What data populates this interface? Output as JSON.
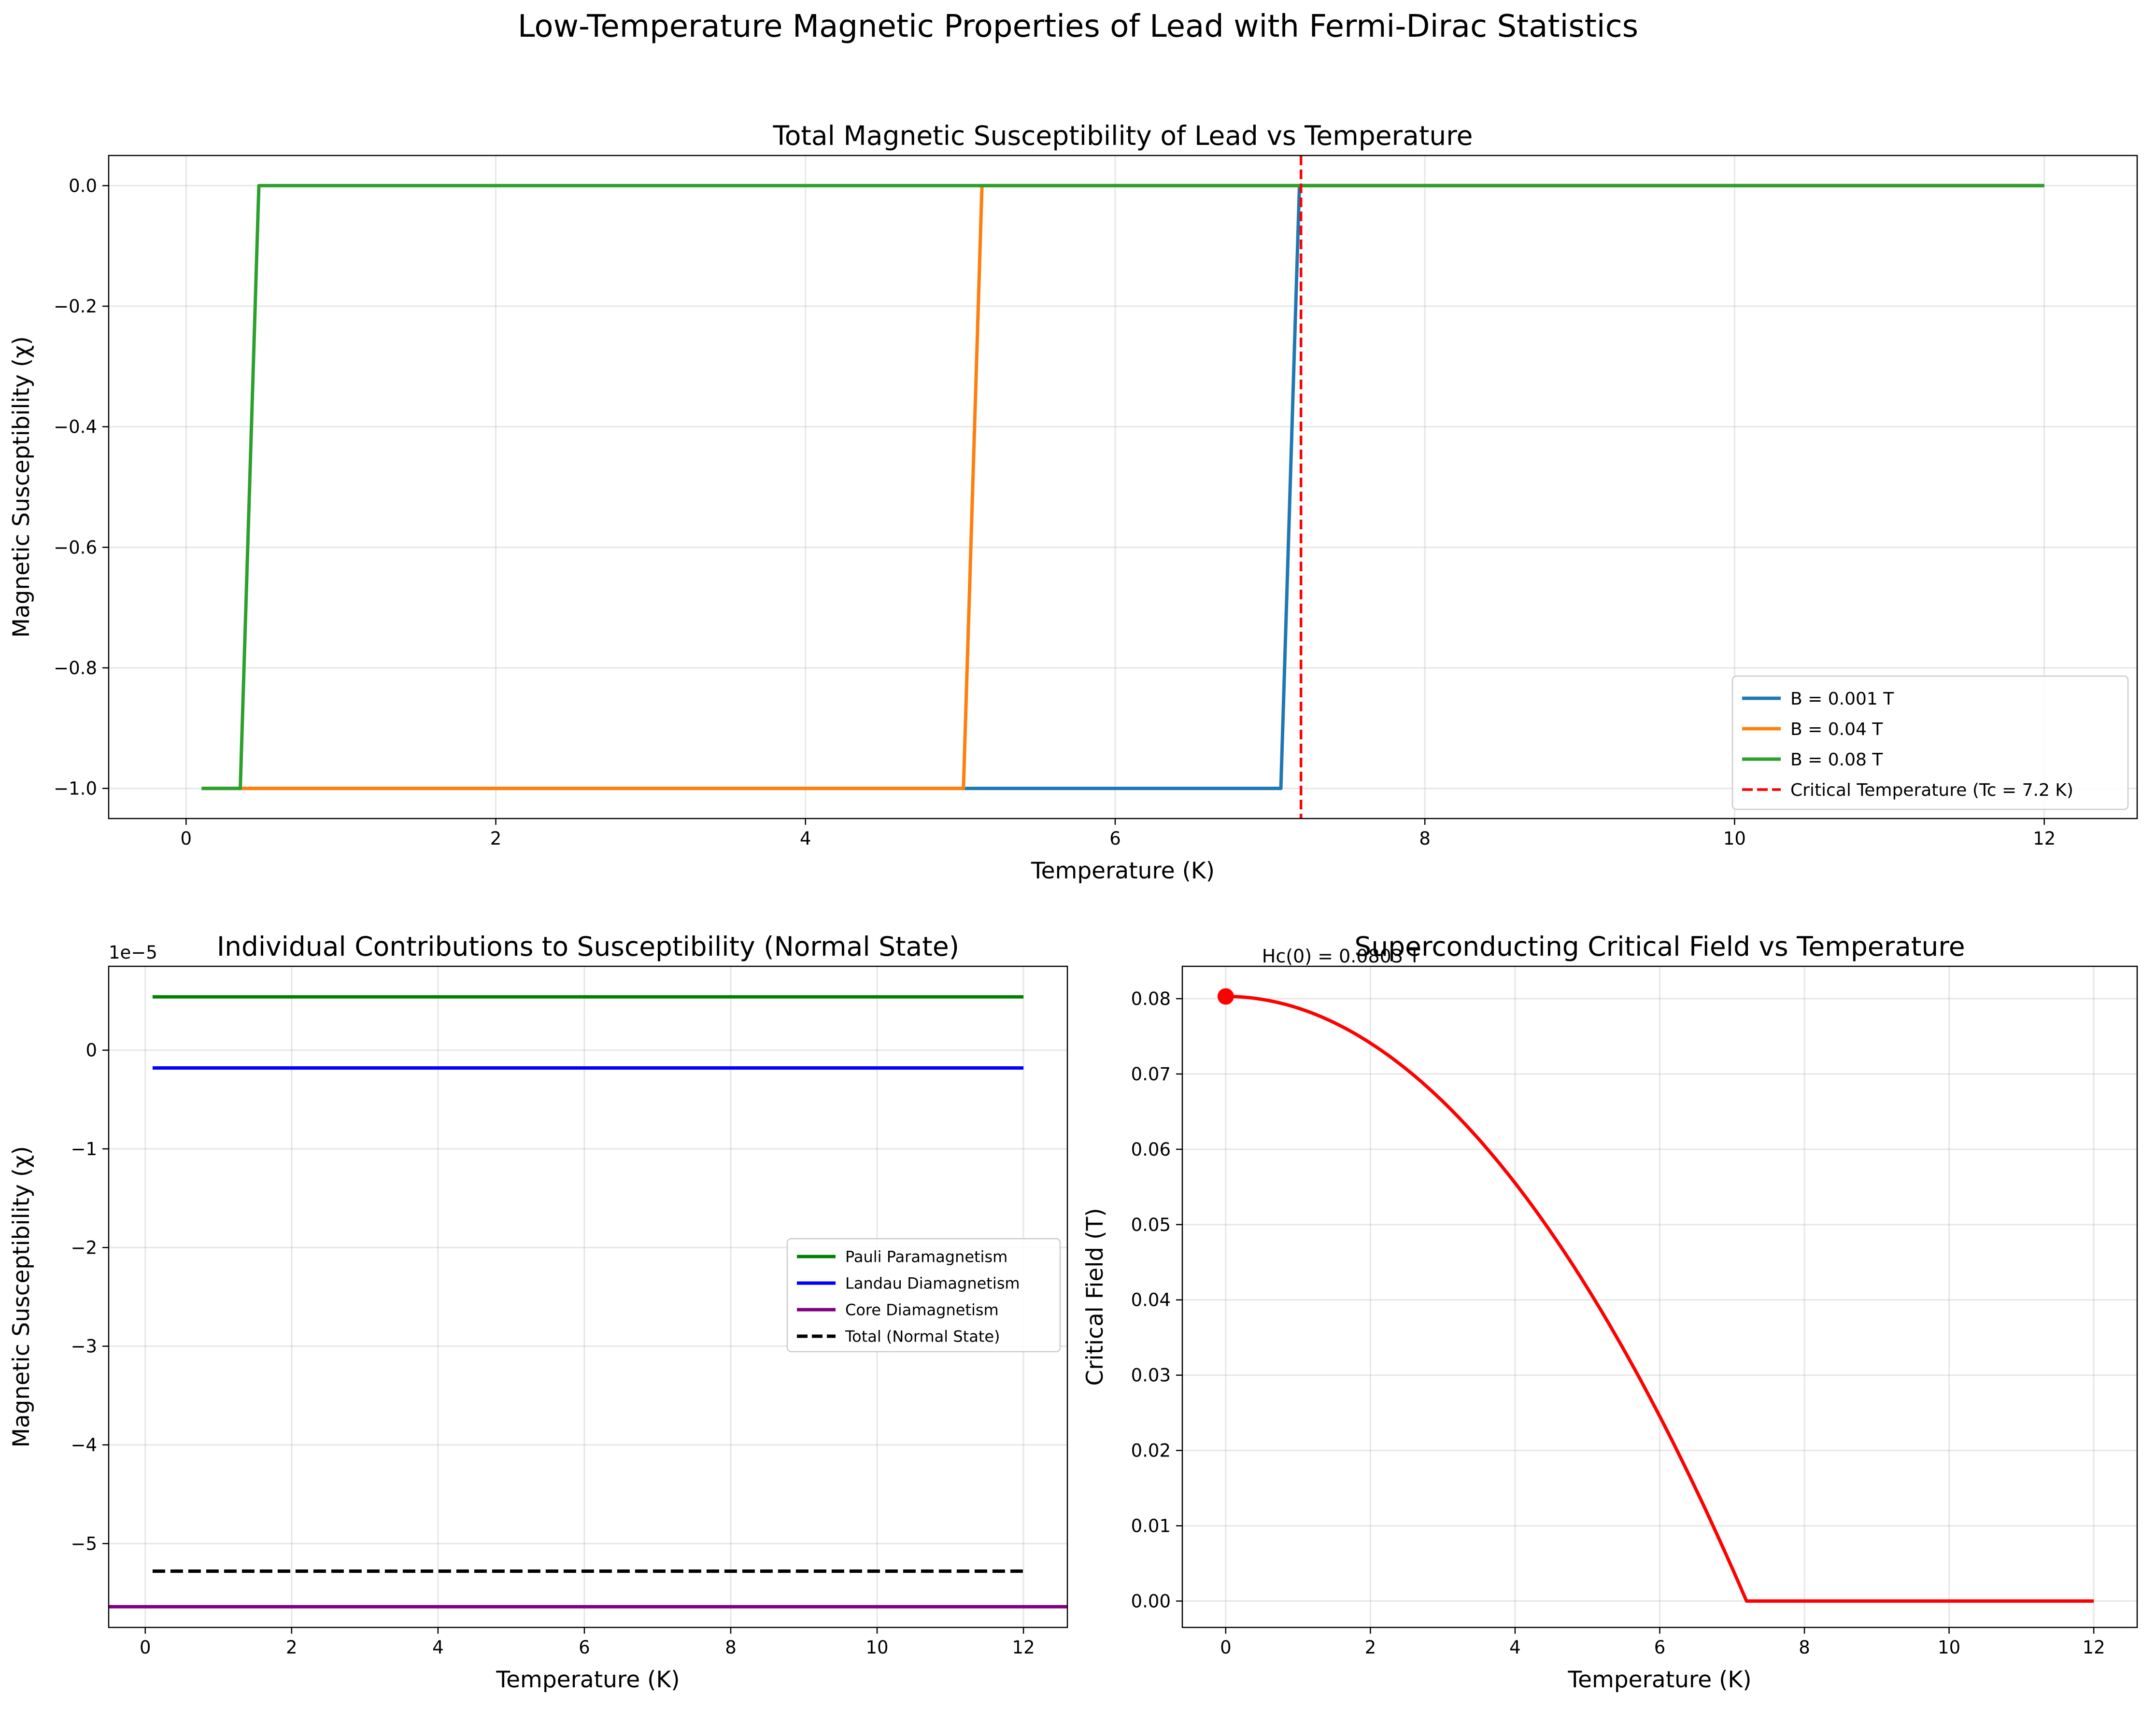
{
  "figure": {
    "suptitle": "Low-Temperature Magnetic Properties of Lead with Fermi-Dirac Statistics"
  },
  "chart_data": [
    {
      "type": "line",
      "title": "Total Magnetic Susceptibility of Lead vs Temperature",
      "xlabel": "Temperature (K)",
      "ylabel": "Magnetic Susceptibility (χ)",
      "xlim": [
        -0.5,
        12.6
      ],
      "ylim": [
        -1.05,
        0.05
      ],
      "xticks": [
        0,
        2,
        4,
        6,
        8,
        10,
        12
      ],
      "xtick_labels": [
        "0",
        "2",
        "4",
        "6",
        "8",
        "10",
        "12"
      ],
      "yticks": [
        0.0,
        -0.2,
        -0.4,
        -0.6,
        -0.8,
        -1.0
      ],
      "ytick_labels": [
        "0.0",
        "−0.2",
        "−0.4",
        "−0.6",
        "−0.8",
        "−1.0"
      ],
      "grid": true,
      "legend_position": "lower-right",
      "series": [
        {
          "name": "B = 0.001 T",
          "color": "#1f77b4",
          "style": "solid",
          "x": [
            0.1,
            7.07,
            7.19,
            12.0
          ],
          "y": [
            -1.0,
            -1.0,
            0.0,
            0.0
          ]
        },
        {
          "name": "B = 0.04 T",
          "color": "#ff7f0e",
          "style": "solid",
          "x": [
            0.1,
            5.02,
            5.14,
            12.0
          ],
          "y": [
            -1.0,
            -1.0,
            0.0,
            0.0
          ]
        },
        {
          "name": "B = 0.08 T",
          "color": "#2ca02c",
          "style": "solid",
          "x": [
            0.1,
            0.35,
            0.47,
            12.0
          ],
          "y": [
            -1.0,
            -1.0,
            0.0,
            0.0
          ]
        }
      ],
      "vlines": [
        {
          "name": "Critical Temperature (Tc = 7.2 K)",
          "x": 7.2,
          "color": "#ff0000",
          "style": "dashed"
        }
      ]
    },
    {
      "type": "line",
      "title": "Individual Contributions to Susceptibility (Normal State)",
      "xlabel": "Temperature (K)",
      "ylabel": "Magnetic Susceptibility (χ)",
      "offset_label": "1e−5",
      "xlim": [
        -0.5,
        12.6
      ],
      "ylim": [
        -5.85,
        0.85
      ],
      "xticks": [
        0,
        2,
        4,
        6,
        8,
        10,
        12
      ],
      "xtick_labels": [
        "0",
        "2",
        "4",
        "6",
        "8",
        "10",
        "12"
      ],
      "yticks": [
        0,
        -1,
        -2,
        -3,
        -4,
        -5
      ],
      "ytick_labels": [
        "0",
        "−1",
        "−2",
        "−3",
        "−4",
        "−5"
      ],
      "grid": true,
      "legend_position": "center-right",
      "series": [
        {
          "name": "Pauli Paramagnetism",
          "color": "#008000",
          "style": "solid",
          "x": [
            0.1,
            12.0
          ],
          "y": [
            0.54,
            0.54
          ]
        },
        {
          "name": "Landau Diamagnetism",
          "color": "#0000ff",
          "style": "solid",
          "x": [
            0.1,
            12.0
          ],
          "y": [
            -0.18,
            -0.18
          ]
        },
        {
          "name": "Core Diamagnetism",
          "color": "#800080",
          "style": "solid",
          "x": [
            -0.5,
            12.6
          ],
          "y": [
            -5.64,
            -5.64
          ]
        },
        {
          "name": "Total (Normal State)",
          "color": "#000000",
          "style": "dashed",
          "x": [
            0.1,
            12.0
          ],
          "y": [
            -5.28,
            -5.28
          ]
        }
      ]
    },
    {
      "type": "line",
      "title": "Superconducting Critical Field vs Temperature",
      "xlabel": "Temperature (K)",
      "ylabel": "Critical Field (T)",
      "xlim": [
        -0.6,
        12.6
      ],
      "ylim": [
        -0.0035,
        0.0843
      ],
      "xticks": [
        0,
        2,
        4,
        6,
        8,
        10,
        12
      ],
      "xtick_labels": [
        "0",
        "2",
        "4",
        "6",
        "8",
        "10",
        "12"
      ],
      "yticks": [
        0.0,
        0.01,
        0.02,
        0.03,
        0.04,
        0.05,
        0.06,
        0.07,
        0.08
      ],
      "ytick_labels": [
        "0.00",
        "0.01",
        "0.02",
        "0.03",
        "0.04",
        "0.05",
        "0.06",
        "0.07",
        "0.08"
      ],
      "grid": true,
      "curve": {
        "color": "#ff0000",
        "Hc0": 0.0803,
        "Tc": 7.2,
        "T_max": 12.0
      },
      "series": [
        {
          "name": "",
          "color": "#ff0000",
          "style": "solid",
          "x": [
            0,
            1,
            2,
            3,
            4,
            5,
            6,
            7,
            7.2,
            8,
            10,
            12
          ],
          "y": [
            0.0803,
            0.0788,
            0.0741,
            0.0664,
            0.0555,
            0.0416,
            0.0245,
            0.0044,
            0.0,
            0.0,
            0.0,
            0.0
          ]
        }
      ],
      "marker": {
        "x": 0,
        "y": 0.0803,
        "color": "#ff0000"
      },
      "annotation": {
        "text": "Hc(0) = 0.0803 T",
        "x": 0.5,
        "y": 0.0843
      }
    }
  ]
}
